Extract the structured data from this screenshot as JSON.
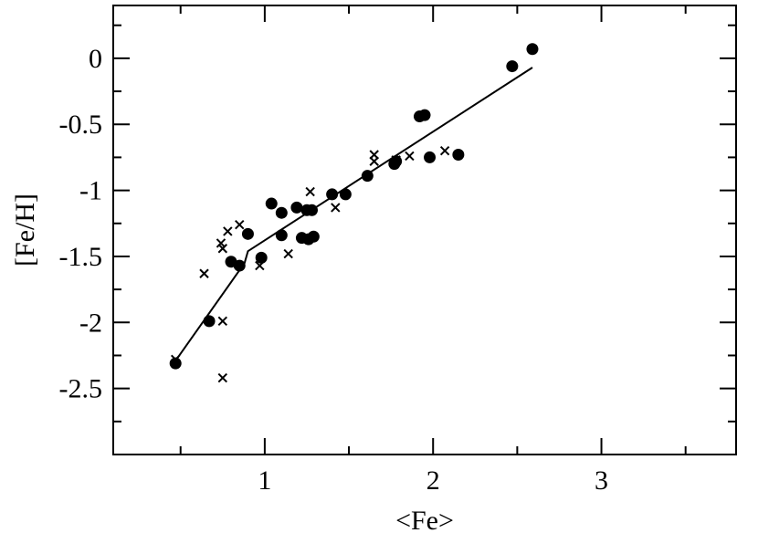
{
  "chart_data": {
    "type": "scatter",
    "title": "",
    "xlabel": "<Fe>",
    "ylabel": "[Fe/H]",
    "xlim": [
      0.1,
      3.8
    ],
    "ylim": [
      -3.0,
      0.4
    ],
    "xticks": [
      1,
      2,
      3
    ],
    "xtick_labels": [
      "1",
      "2",
      "3"
    ],
    "yticks": [
      0,
      -0.5,
      -1,
      -1.5,
      -2,
      -2.5
    ],
    "ytick_labels": [
      "0",
      "-0.5",
      "-1",
      "-1.5",
      "-2",
      "-2.5"
    ],
    "grid": false,
    "legend": "none",
    "series": [
      {
        "marker": "circle",
        "color": "#000000",
        "points": [
          [
            0.47,
            -2.31
          ],
          [
            0.67,
            -1.99
          ],
          [
            0.8,
            -1.54
          ],
          [
            0.85,
            -1.57
          ],
          [
            0.9,
            -1.33
          ],
          [
            0.98,
            -1.51
          ],
          [
            1.04,
            -1.1
          ],
          [
            1.1,
            -1.17
          ],
          [
            1.1,
            -1.34
          ],
          [
            1.19,
            -1.13
          ],
          [
            1.22,
            -1.36
          ],
          [
            1.25,
            -1.15
          ],
          [
            1.26,
            -1.37
          ],
          [
            1.28,
            -1.15
          ],
          [
            1.29,
            -1.35
          ],
          [
            1.4,
            -1.03
          ],
          [
            1.48,
            -1.03
          ],
          [
            1.61,
            -0.89
          ],
          [
            1.77,
            -0.8
          ],
          [
            1.78,
            -0.78
          ],
          [
            1.92,
            -0.44
          ],
          [
            1.95,
            -0.43
          ],
          [
            1.98,
            -0.75
          ],
          [
            2.15,
            -0.73
          ],
          [
            2.47,
            -0.06
          ],
          [
            2.59,
            0.07
          ]
        ]
      },
      {
        "marker": "cross",
        "color": "#000000",
        "points": [
          [
            0.47,
            -2.28
          ],
          [
            0.64,
            -1.63
          ],
          [
            0.74,
            -1.4
          ],
          [
            0.75,
            -1.44
          ],
          [
            0.75,
            -1.99
          ],
          [
            0.75,
            -2.42
          ],
          [
            0.78,
            -1.31
          ],
          [
            0.85,
            -1.26
          ],
          [
            0.97,
            -1.57
          ],
          [
            1.14,
            -1.48
          ],
          [
            1.27,
            -1.01
          ],
          [
            1.42,
            -1.13
          ],
          [
            1.65,
            -0.73
          ],
          [
            1.65,
            -0.78
          ],
          [
            1.78,
            -0.77
          ],
          [
            1.86,
            -0.74
          ],
          [
            2.07,
            -0.7
          ]
        ]
      },
      {
        "marker": "line",
        "color": "#000000",
        "points": [
          [
            0.47,
            -2.29
          ],
          [
            0.88,
            -1.55
          ],
          [
            0.9,
            -1.46
          ],
          [
            2.59,
            -0.07
          ]
        ]
      }
    ]
  }
}
